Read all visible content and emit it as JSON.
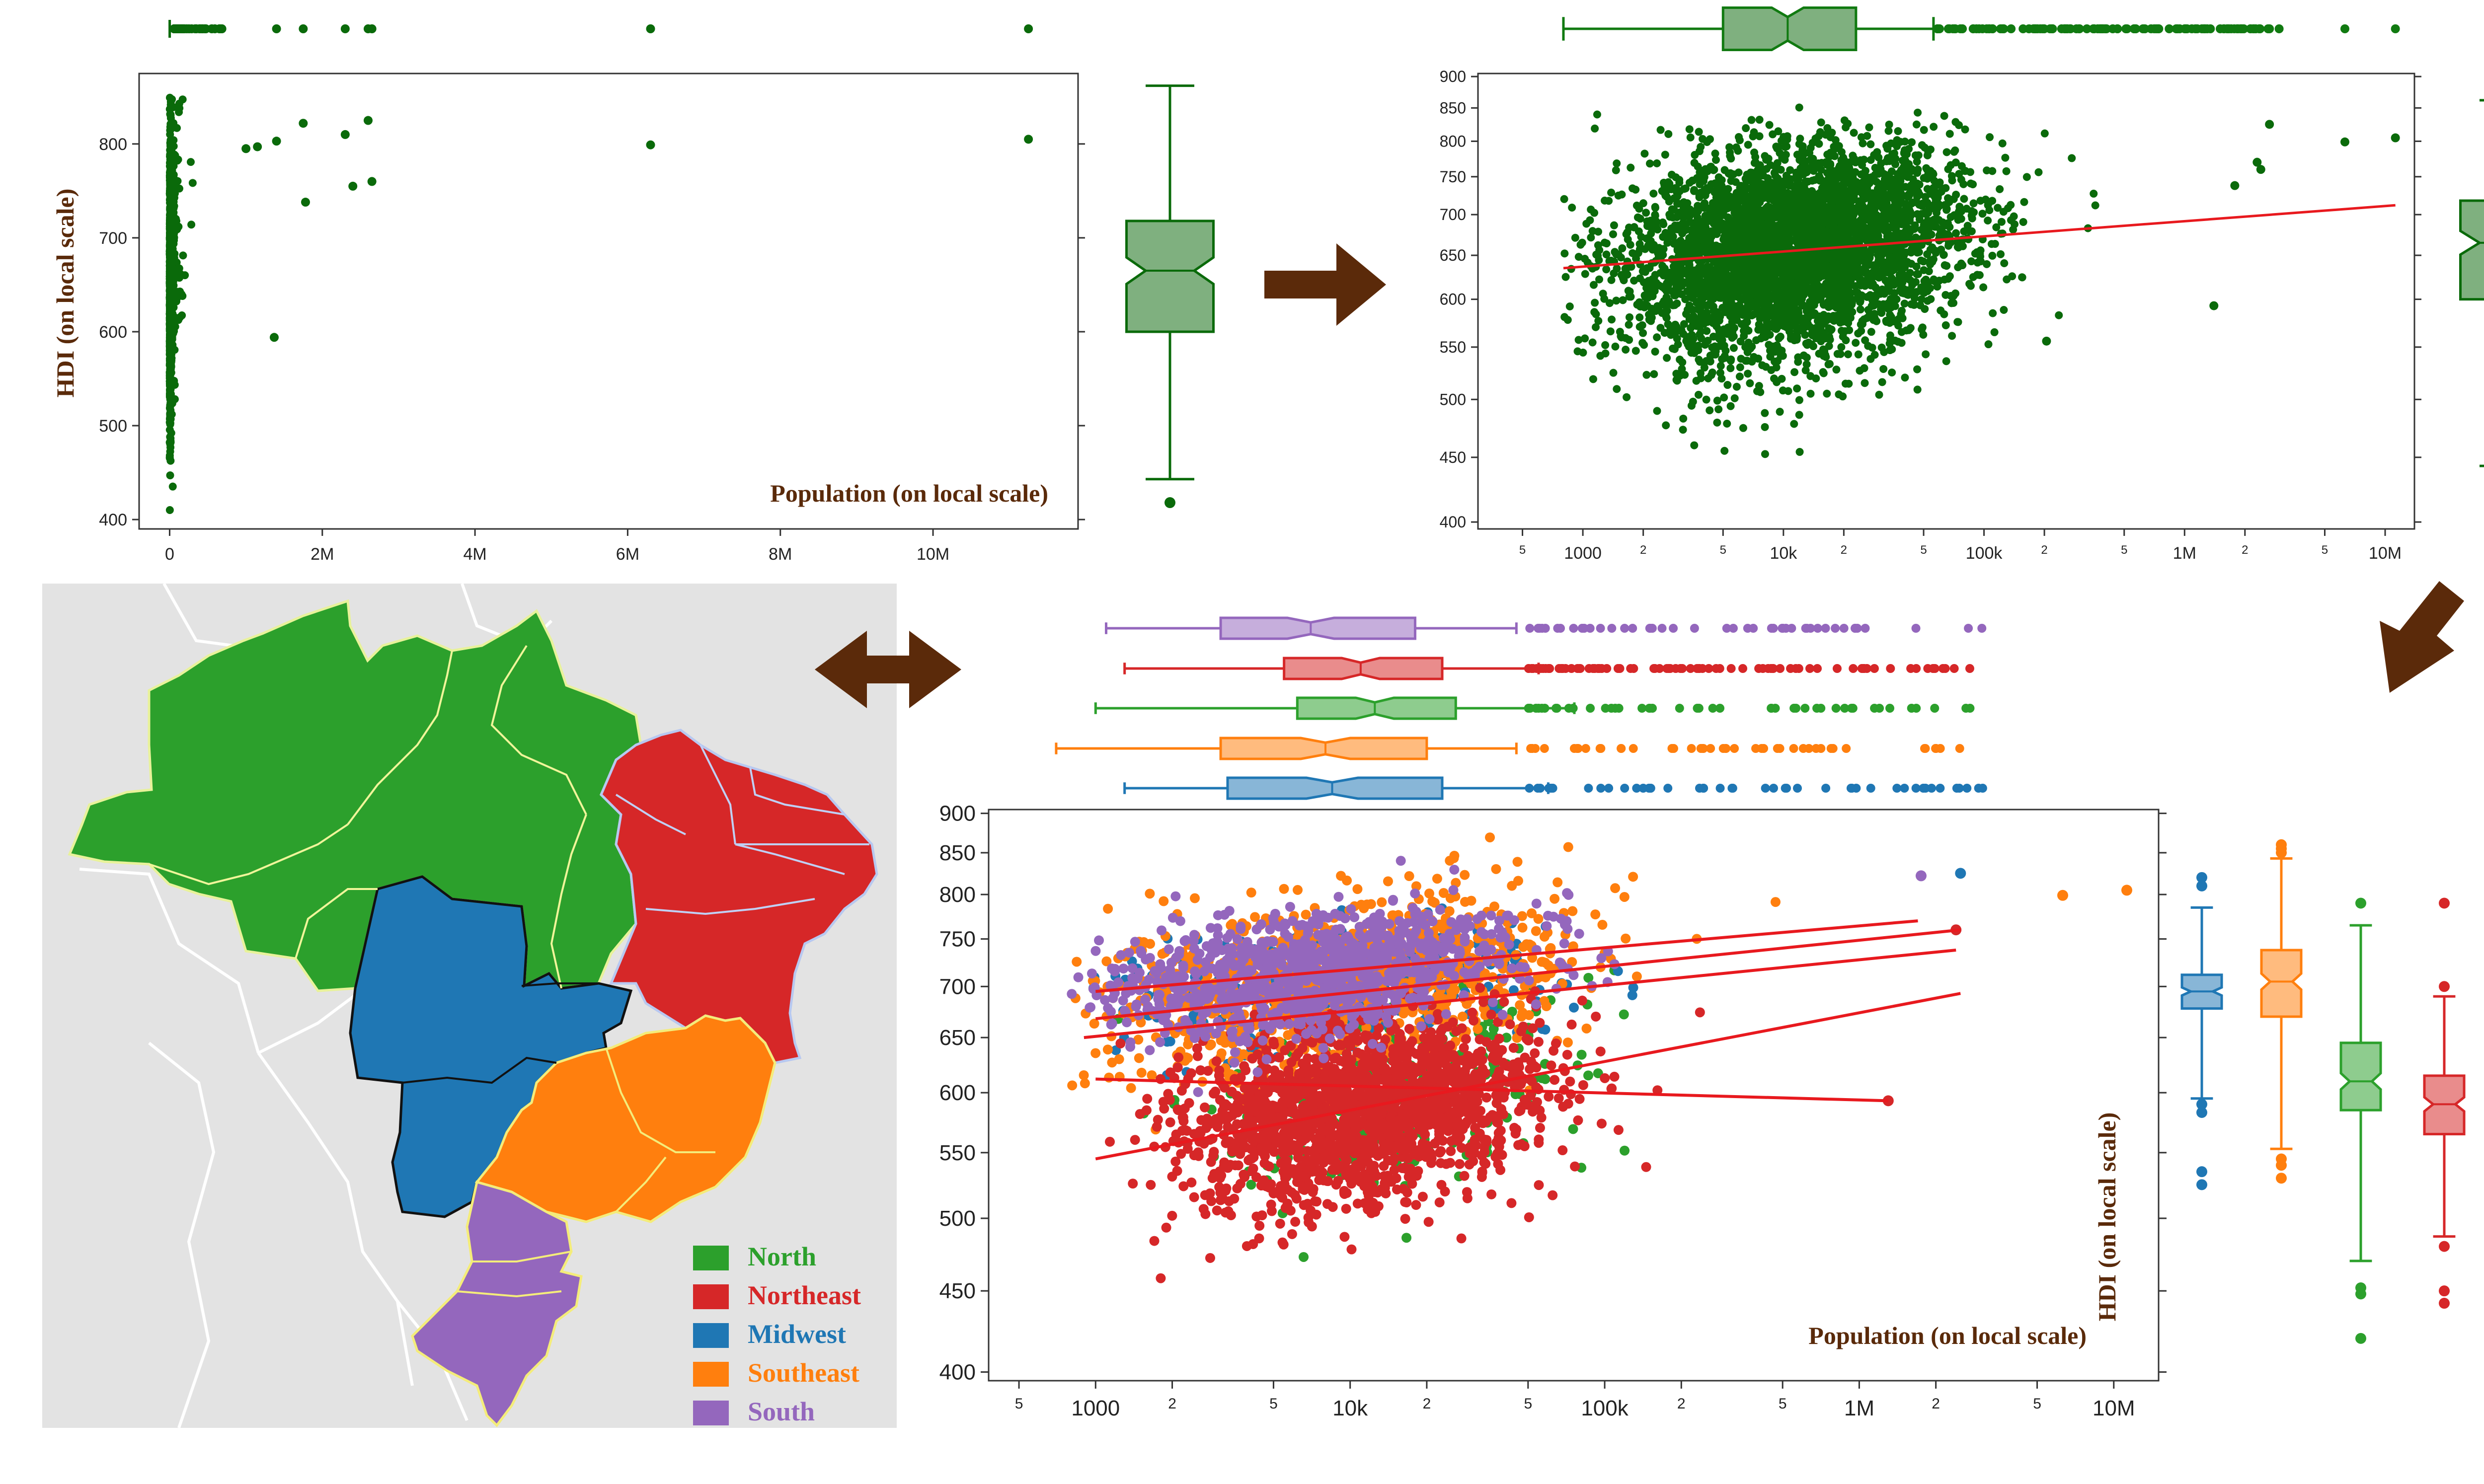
{
  "colors": {
    "single": "#0a6a0a",
    "single_box": "#7fb07f",
    "fit": "#e8191e",
    "arrow": "#5b2a0a",
    "North": "#2ca02c",
    "Northeast": "#d62728",
    "Midwest": "#1f77b4",
    "Southeast": "#ff7f0e",
    "South": "#9467bd",
    "map_bg": "#e3e3e3"
  },
  "panels": {
    "linear": {
      "ylabel": "HDI (on local scale)",
      "xlabel": "Population (on local scale)"
    },
    "log": {},
    "grouped": {
      "ylabel": "HDI (on local scale)",
      "xlabel": "Population (on local scale)"
    }
  },
  "legend": [
    {
      "name": "North",
      "color": "#2ca02c"
    },
    {
      "name": "Northeast",
      "color": "#d62728"
    },
    {
      "name": "Midwest",
      "color": "#1f77b4"
    },
    {
      "name": "Southeast",
      "color": "#ff7f0e"
    },
    {
      "name": "South",
      "color": "#9467bd"
    }
  ],
  "chart_data": [
    {
      "type": "scatter",
      "name_in_image": "top-left",
      "xlabel": "Population (on local scale)",
      "ylabel": "HDI (on local scale)",
      "x_scale": "linear",
      "y_scale": "linear",
      "xlim": [
        -400000,
        11900000
      ],
      "ylim": [
        390,
        875
      ],
      "x_ticks": [
        0,
        2000000,
        4000000,
        6000000,
        8000000,
        10000000
      ],
      "x_tick_labels": [
        "0",
        "2M",
        "4M",
        "6M",
        "8M",
        "10M"
      ],
      "y_ticks": [
        400,
        500,
        600,
        700,
        800
      ],
      "notable_points": [
        {
          "x": 11250000,
          "y": 805
        },
        {
          "x": 6300000,
          "y": 799
        },
        {
          "x": 2650000,
          "y": 760
        },
        {
          "x": 2600000,
          "y": 825
        },
        {
          "x": 2400000,
          "y": 755
        },
        {
          "x": 2300000,
          "y": 810
        },
        {
          "x": 1780000,
          "y": 738
        },
        {
          "x": 1750000,
          "y": 822
        },
        {
          "x": 1400000,
          "y": 803
        },
        {
          "x": 1370000,
          "y": 594
        },
        {
          "x": 1150000,
          "y": 797
        },
        {
          "x": 1000000,
          "y": 795
        }
      ],
      "y_box": {
        "min": 443,
        "q1": 600,
        "median": 665,
        "q3": 718,
        "max": 862,
        "outliers": [
          418
        ]
      },
      "x_box": {
        "min": 800,
        "q1": 5000,
        "median": 10500,
        "q3": 23000,
        "whisker": 56000,
        "outliers": [
          1400000,
          1750000,
          2300000,
          2600000,
          2650000,
          6300000,
          11250000
        ]
      }
    },
    {
      "type": "scatter",
      "name_in_image": "top-right",
      "x_scale": "log",
      "y_scale": "log",
      "xlim": [
        300,
        14000000
      ],
      "ylim": [
        395,
        905
      ],
      "x_tick_labels": [
        "5",
        "1000",
        "2",
        "5",
        "10k",
        "2",
        "5",
        "100k",
        "2",
        "5",
        "1M",
        "2",
        "5",
        "10M",
        "2"
      ],
      "y_ticks": [
        400,
        450,
        500,
        550,
        600,
        650,
        700,
        750,
        800,
        850,
        900
      ],
      "fit_line": [
        {
          "x": 800,
          "y": 635
        },
        {
          "x": 11250000,
          "y": 712
        }
      ],
      "y_box": {
        "min": 443,
        "q1": 600,
        "median": 665,
        "q3": 718,
        "max": 862,
        "outliers": [
          418
        ]
      },
      "x_box": {
        "min": 800,
        "q1": 5000,
        "median": 10500,
        "q3": 23000,
        "whisker": 56000
      }
    },
    {
      "type": "scatter",
      "name_in_image": "bottom",
      "xlabel": "Population (on local scale)",
      "ylabel": "HDI (on local scale)",
      "x_scale": "log",
      "y_scale": "log",
      "xlim": [
        380,
        15000000
      ],
      "ylim": [
        395,
        905
      ],
      "x_tick_labels": [
        "5",
        "1000",
        "2",
        "5",
        "10k",
        "2",
        "5",
        "100k",
        "2",
        "5",
        "1M",
        "2",
        "5",
        "10M",
        "2"
      ],
      "y_ticks": [
        400,
        450,
        500,
        550,
        600,
        650,
        700,
        750,
        800,
        850,
        900
      ],
      "series": [
        {
          "name": "North",
          "fit_line": [
            {
              "x": 1000,
              "y": 612
            },
            {
              "x": 1300000,
              "y": 593
            }
          ],
          "y_box": {
            "min": 470,
            "q1": 585,
            "median": 610,
            "q3": 645,
            "max": 765,
            "outliers": [
              452,
              448,
              420,
              790
            ]
          },
          "x_box": {
            "min": 1000,
            "q1": 6200,
            "median": 12500,
            "q3": 26000,
            "whisker": 76000
          }
        },
        {
          "name": "Northeast",
          "fit_line": [
            {
              "x": 1000,
              "y": 545
            },
            {
              "x": 2500000,
              "y": 693
            }
          ],
          "y_box": {
            "min": 487,
            "q1": 565,
            "median": 590,
            "q3": 615,
            "max": 690,
            "outliers": [
              480,
              450,
              442,
              700,
              790
            ]
          },
          "x_box": {
            "min": 1300,
            "q1": 5500,
            "median": 11000,
            "q3": 23000,
            "whisker": 55000
          }
        },
        {
          "name": "Midwest",
          "fit_line": [
            {
              "x": 1000,
              "y": 668
            },
            {
              "x": 2500000,
              "y": 760
            }
          ],
          "y_box": {
            "min": 595,
            "q1": 678,
            "median": 695,
            "q3": 712,
            "max": 785,
            "outliers": [
              535,
              525,
              590,
              583,
              810,
              820
            ]
          },
          "x_box": {
            "min": 1300,
            "q1": 3300,
            "median": 8500,
            "q3": 23000,
            "whisker": 60000
          }
        },
        {
          "name": "Southeast",
          "fit_line": [
            {
              "x": 900,
              "y": 650
            },
            {
              "x": 2400000,
              "y": 738
            }
          ],
          "y_box": {
            "min": 553,
            "q1": 670,
            "median": 705,
            "q3": 738,
            "max": 843,
            "outliers": [
              545,
              540,
              530,
              850,
              855,
              860
            ]
          },
          "x_box": {
            "min": 700,
            "q1": 3100,
            "median": 8000,
            "q3": 20000,
            "whisker": 45000
          }
        },
        {
          "name": "South",
          "fit_line": [
            {
              "x": 1000,
              "y": 695
            },
            {
              "x": 1700000,
              "y": 770
            }
          ],
          "y_box": {
            "min": 607,
            "q1": 690,
            "median": 715,
            "q3": 740,
            "max": 825,
            "outliers": [
              600,
              590,
              580,
              570,
              550,
              840,
              848
            ]
          },
          "x_box": {
            "min": 1100,
            "q1": 3100,
            "median": 7000,
            "q3": 18000,
            "whisker": 45000
          }
        }
      ]
    }
  ]
}
